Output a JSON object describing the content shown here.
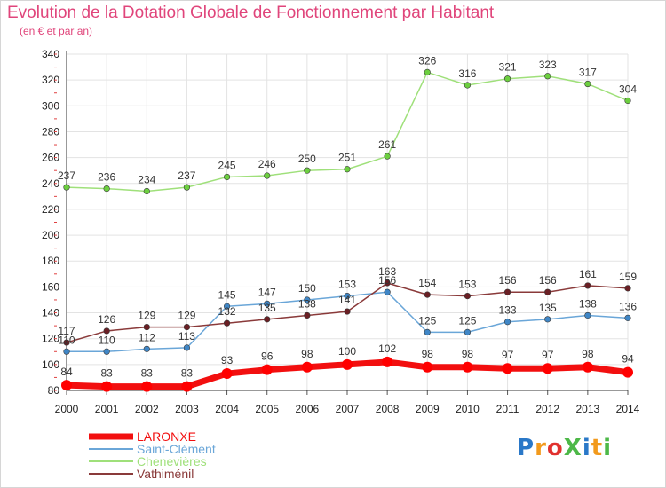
{
  "title": "Evolution de la Dotation Globale de Fonctionnement par Habitant",
  "subtitle": "(en € et par an)",
  "logo": {
    "text": "ProXiti",
    "colors": [
      "#2a78c8",
      "#f29a1c",
      "#e1312e",
      "#4db848",
      "#2a78c8",
      "#f29a1c",
      "#4db848"
    ]
  },
  "chart_data": {
    "type": "line",
    "x": [
      2000,
      2001,
      2002,
      2003,
      2004,
      2005,
      2006,
      2007,
      2008,
      2009,
      2010,
      2011,
      2012,
      2013,
      2014
    ],
    "ylim": [
      80,
      340
    ],
    "yticks": [
      80,
      100,
      120,
      140,
      160,
      180,
      200,
      220,
      240,
      260,
      280,
      300,
      320,
      340
    ],
    "grid": true,
    "legend": "bottom-left",
    "series": [
      {
        "name": "LARONXE",
        "color": "#f20f0f",
        "point_color": "#ff0000",
        "width": 7,
        "values": [
          84,
          83,
          83,
          83,
          93,
          96,
          98,
          100,
          102,
          98,
          98,
          97,
          97,
          98,
          94
        ]
      },
      {
        "name": "Saint-Clément",
        "color": "#6aa6d8",
        "point_color": "#3f86c6",
        "width": 1.5,
        "values": [
          110,
          110,
          112,
          113,
          145,
          147,
          150,
          153,
          156,
          125,
          125,
          133,
          135,
          138,
          136
        ]
      },
      {
        "name": "Chenevières",
        "color": "#9fe07a",
        "point_color": "#6ccf3f",
        "width": 1.5,
        "values": [
          237,
          236,
          234,
          237,
          245,
          246,
          250,
          251,
          261,
          326,
          316,
          321,
          323,
          317,
          304
        ]
      },
      {
        "name": "Vathiménil",
        "color": "#8a3a3a",
        "point_color": "#6a1f24",
        "width": 1.5,
        "values": [
          117,
          126,
          129,
          129,
          132,
          135,
          138,
          141,
          163,
          154,
          153,
          156,
          156,
          161,
          159
        ]
      }
    ]
  }
}
